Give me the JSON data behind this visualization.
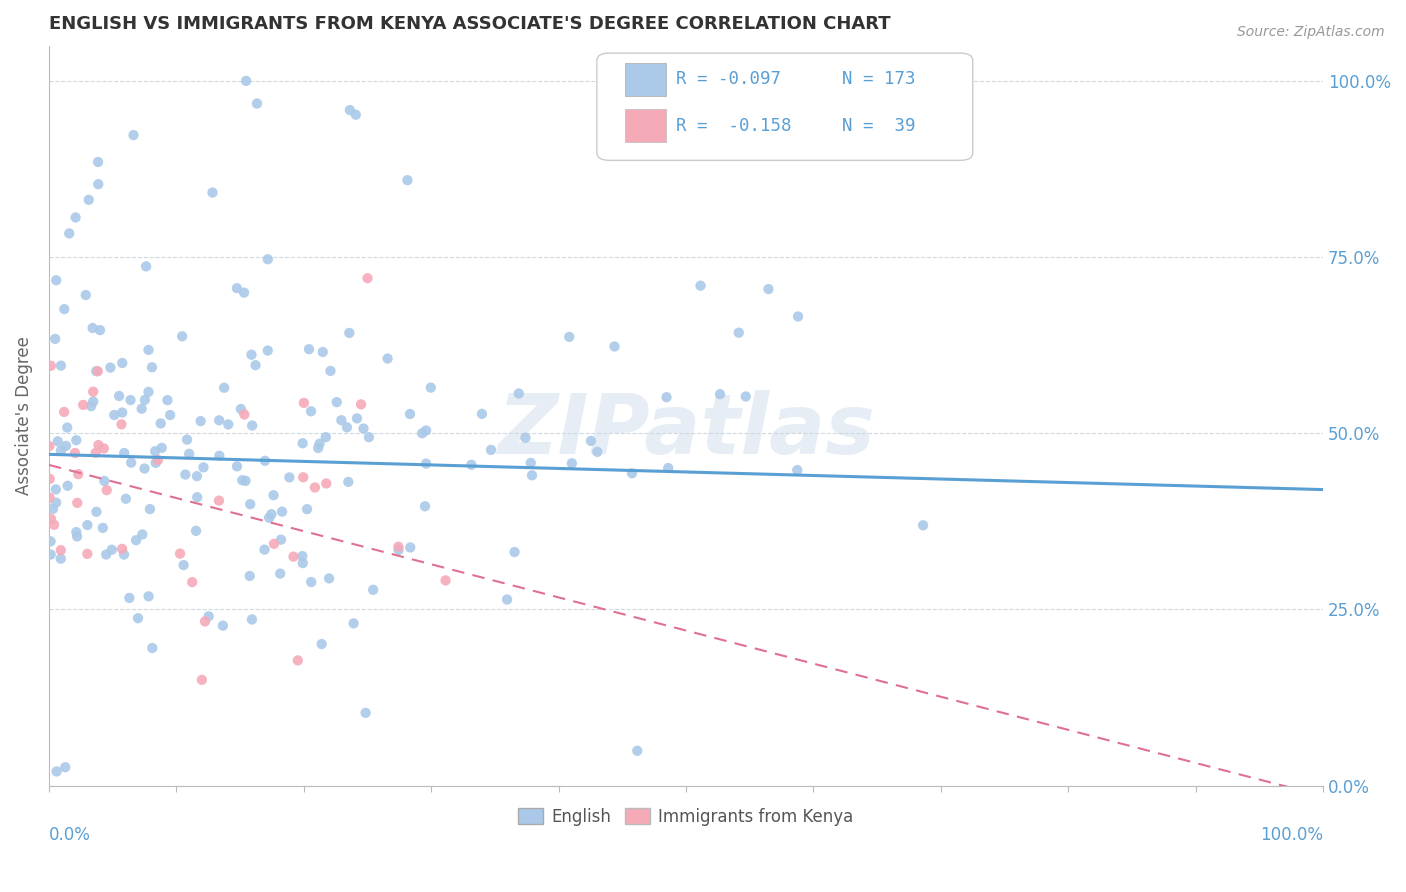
{
  "title": "ENGLISH VS IMMIGRANTS FROM KENYA ASSOCIATE'S DEGREE CORRELATION CHART",
  "source": "Source: ZipAtlas.com",
  "ylabel": "Associate's Degree",
  "watermark": "ZIPatlas",
  "legend_english_R": -0.097,
  "legend_english_N": 173,
  "legend_kenya_R": -0.158,
  "legend_kenya_N": 39,
  "english_scatter_color": "#aac9e8",
  "kenya_scatter_color": "#f5aab8",
  "trendline_english_color": "#5a9fd4",
  "trendline_kenya_color": "#e07090",
  "background_color": "#ffffff",
  "grid_color": "#d0d8e0",
  "ytick_labels": [
    "0.0%",
    "25.0%",
    "50.0%",
    "75.0%",
    "100.0%"
  ],
  "ytick_values": [
    0.0,
    0.25,
    0.5,
    0.75,
    1.0
  ],
  "xlim": [
    0.0,
    1.0
  ],
  "ylim": [
    0.0,
    1.05
  ],
  "title_color": "#333333",
  "source_color": "#999999",
  "axis_label_color": "#5a9fd4",
  "ylabel_color": "#666666"
}
